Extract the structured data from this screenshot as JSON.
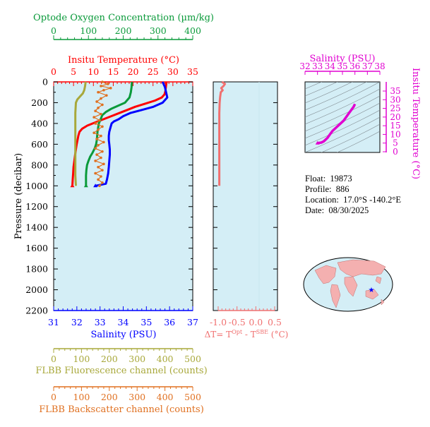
{
  "colors": {
    "oxygen": "#0a9a3a",
    "temperature": "#ff0000",
    "salinity": "#0000ff",
    "fluorescence": "#a8a83a",
    "backscatter": "#e07020",
    "delta_t": "#f07070",
    "ts_diagram": "#e000d0",
    "panel_bg": "#d4eef6"
  },
  "axes": {
    "oxygen": {
      "title": "Optode Oxygen Concentration (µm/kg)",
      "ticks": [
        "0",
        "100",
        "200",
        "300",
        "400"
      ]
    },
    "temperature": {
      "title": "Insitu Temperature (°C)",
      "ticks": [
        "0",
        "5",
        "10",
        "15",
        "20",
        "25",
        "30",
        "35"
      ]
    },
    "salinity": {
      "title": "Salinity (PSU)",
      "ticks": [
        "31",
        "32",
        "33",
        "34",
        "35",
        "36",
        "37"
      ]
    },
    "pressure": {
      "title": "Pressure (decibar)",
      "ticks": [
        "0",
        "200",
        "400",
        "600",
        "800",
        "1000",
        "1200",
        "1400",
        "1600",
        "1800",
        "2000",
        "2200"
      ]
    },
    "delta_t": {
      "title": "ΔT= T",
      "sup1": "Opt",
      "mid": " - T",
      "sup2": "SBE",
      "unit": " (°C)",
      "ticks": [
        "-1.0",
        "-0.5",
        "0.0",
        "0.5"
      ]
    },
    "fluorescence": {
      "title": "FLBB Fluorescence channel (counts)",
      "ticks": [
        "0",
        "100",
        "200",
        "300",
        "400",
        "500"
      ]
    },
    "backscatter": {
      "title": "FLBB Backscatter channel (counts)",
      "ticks": [
        "0",
        "100",
        "200",
        "300",
        "400",
        "500"
      ]
    },
    "ts_salinity": {
      "title": "Salinity (PSU)",
      "ticks": [
        "32",
        "33",
        "34",
        "35",
        "36",
        "37",
        "38"
      ]
    },
    "ts_temperature": {
      "title": "Insitu Temperature (°C)",
      "ticks": [
        "0",
        "5",
        "10",
        "15",
        "20",
        "25",
        "30",
        "35"
      ]
    }
  },
  "info": {
    "float_label": "Float:",
    "float_value": "19873",
    "profile_label": "Profile:",
    "profile_value": "886",
    "location_label": "Location:",
    "location_value": "17.0°S  -140.2°E",
    "date_label": "Date:",
    "date_value": "08/30/2025"
  },
  "chart_data": {
    "type": "line",
    "y_axis": "pressure_dbar",
    "ylim": [
      0,
      2200
    ],
    "series": [
      {
        "name": "Insitu Temperature (°C)",
        "x_range": [
          0,
          35
        ],
        "points": [
          [
            28.4,
            0
          ],
          [
            28.3,
            30
          ],
          [
            28.2,
            60
          ],
          [
            28.1,
            90
          ],
          [
            27.9,
            120
          ],
          [
            27.2,
            150
          ],
          [
            25.5,
            180
          ],
          [
            23,
            210
          ],
          [
            20.5,
            240
          ],
          [
            18.5,
            270
          ],
          [
            16.5,
            300
          ],
          [
            14.5,
            330
          ],
          [
            12.5,
            360
          ],
          [
            10.5,
            390
          ],
          [
            8.5,
            420
          ],
          [
            7.2,
            450
          ],
          [
            6.5,
            480
          ],
          [
            6.2,
            520
          ],
          [
            6.0,
            560
          ],
          [
            5.8,
            600
          ],
          [
            5.6,
            650
          ],
          [
            5.4,
            700
          ],
          [
            5.2,
            760
          ],
          [
            5.0,
            820
          ],
          [
            4.9,
            880
          ],
          [
            4.8,
            940
          ],
          [
            4.7,
            1000
          ]
        ]
      },
      {
        "name": "Salinity (PSU)",
        "x_range": [
          31,
          37
        ],
        "points": [
          [
            35.7,
            0
          ],
          [
            35.8,
            50
          ],
          [
            35.85,
            100
          ],
          [
            35.9,
            150
          ],
          [
            35.7,
            200
          ],
          [
            35.3,
            240
          ],
          [
            34.8,
            270
          ],
          [
            34.3,
            300
          ],
          [
            34.0,
            330
          ],
          [
            33.8,
            360
          ],
          [
            33.6,
            380
          ],
          [
            33.5,
            400
          ],
          [
            33.45,
            440
          ],
          [
            33.4,
            480
          ],
          [
            33.38,
            520
          ],
          [
            33.38,
            560
          ],
          [
            33.4,
            600
          ],
          [
            33.42,
            650
          ],
          [
            33.42,
            700
          ],
          [
            33.4,
            760
          ],
          [
            33.38,
            820
          ],
          [
            33.35,
            880
          ],
          [
            33.3,
            940
          ],
          [
            33.25,
            980
          ],
          [
            32.8,
            1000
          ]
        ]
      },
      {
        "name": "Optode Oxygen Concentration (µm/kg)",
        "x_range": [
          0,
          400
        ],
        "points": [
          [
            225,
            0
          ],
          [
            224,
            50
          ],
          [
            222,
            100
          ],
          [
            218,
            150
          ],
          [
            205,
            200
          ],
          [
            185,
            230
          ],
          [
            165,
            260
          ],
          [
            150,
            290
          ],
          [
            140,
            320
          ],
          [
            135,
            360
          ],
          [
            130,
            400
          ],
          [
            128,
            440
          ],
          [
            126,
            480
          ],
          [
            125,
            520
          ],
          [
            124,
            560
          ],
          [
            122,
            600
          ],
          [
            118,
            640
          ],
          [
            112,
            680
          ],
          [
            105,
            720
          ],
          [
            100,
            760
          ],
          [
            96,
            800
          ],
          [
            94,
            850
          ],
          [
            93,
            900
          ],
          [
            93,
            950
          ],
          [
            93,
            1000
          ]
        ]
      },
      {
        "name": "FLBB Fluorescence channel (counts)",
        "x_range": [
          0,
          500
        ],
        "points": [
          [
            115,
            0
          ],
          [
            113,
            40
          ],
          [
            110,
            80
          ],
          [
            105,
            110
          ],
          [
            95,
            140
          ],
          [
            85,
            170
          ],
          [
            80,
            200
          ],
          [
            78,
            300
          ],
          [
            78,
            400
          ],
          [
            78,
            500
          ],
          [
            78,
            600
          ],
          [
            78,
            700
          ],
          [
            78,
            800
          ],
          [
            78,
            900
          ],
          [
            80,
            1000
          ]
        ]
      },
      {
        "name": "FLBB Backscatter channel (counts)",
        "x_range": [
          0,
          500
        ],
        "points": [
          [
            175,
            0
          ],
          [
            195,
            20
          ],
          [
            170,
            40
          ],
          [
            205,
            60
          ],
          [
            180,
            80
          ],
          [
            160,
            100
          ],
          [
            190,
            130
          ],
          [
            170,
            160
          ],
          [
            155,
            190
          ],
          [
            175,
            220
          ],
          [
            160,
            250
          ],
          [
            150,
            280
          ],
          [
            170,
            310
          ],
          [
            145,
            340
          ],
          [
            165,
            370
          ],
          [
            150,
            400
          ],
          [
            175,
            430
          ],
          [
            160,
            460
          ],
          [
            145,
            490
          ],
          [
            170,
            520
          ],
          [
            155,
            550
          ],
          [
            180,
            580
          ],
          [
            160,
            610
          ],
          [
            150,
            640
          ],
          [
            175,
            670
          ],
          [
            155,
            700
          ],
          [
            170,
            730
          ],
          [
            150,
            760
          ],
          [
            180,
            790
          ],
          [
            160,
            820
          ],
          [
            175,
            850
          ],
          [
            150,
            880
          ],
          [
            170,
            910
          ],
          [
            160,
            940
          ],
          [
            175,
            970
          ],
          [
            165,
            1000
          ]
        ]
      },
      {
        "name": "ΔT (°C)",
        "x_range": [
          -1.0,
          0.5
        ],
        "points": [
          [
            -0.9,
            0
          ],
          [
            -0.82,
            20
          ],
          [
            -0.86,
            40
          ],
          [
            -0.92,
            60
          ],
          [
            -0.88,
            80
          ],
          [
            -0.93,
            100
          ],
          [
            -0.95,
            150
          ],
          [
            -0.96,
            200
          ],
          [
            -0.97,
            300
          ],
          [
            -0.97,
            400
          ],
          [
            -0.97,
            500
          ],
          [
            -0.97,
            600
          ],
          [
            -0.97,
            700
          ],
          [
            -0.97,
            800
          ],
          [
            -0.97,
            900
          ],
          [
            -0.97,
            1000
          ]
        ]
      },
      {
        "name": "T-S",
        "x_range": [
          32,
          38
        ],
        "y_range": [
          -5,
          35
        ],
        "points": [
          [
            33.0,
            5
          ],
          [
            33.3,
            5.3
          ],
          [
            33.5,
            6
          ],
          [
            33.8,
            8
          ],
          [
            34.0,
            10
          ],
          [
            34.2,
            12
          ],
          [
            34.5,
            14
          ],
          [
            34.8,
            16
          ],
          [
            35.1,
            18
          ],
          [
            35.3,
            20
          ],
          [
            35.5,
            22
          ],
          [
            35.7,
            24
          ],
          [
            35.9,
            26
          ],
          [
            36.0,
            27.5
          ]
        ]
      }
    ]
  }
}
